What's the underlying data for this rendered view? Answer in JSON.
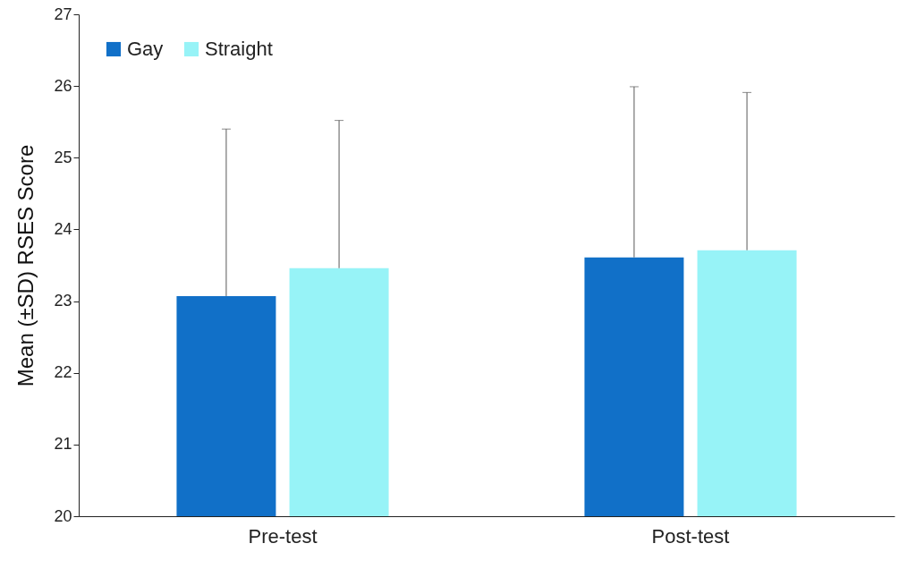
{
  "chart_data": {
    "type": "bar",
    "ylabel": "Mean (±SD) RSES Score",
    "categories": [
      "Pre-test",
      "Post-test"
    ],
    "series": [
      {
        "name": "Gay",
        "color": "#1170c8",
        "values": [
          23.07,
          23.61
        ],
        "errors": [
          [
            23.07,
            25.4
          ],
          [
            23.61,
            25.99
          ]
        ]
      },
      {
        "name": "Straight",
        "color": "#97f3f7",
        "values": [
          23.46,
          23.71
        ],
        "errors": [
          [
            23.46,
            25.52
          ],
          [
            23.71,
            25.91
          ]
        ]
      }
    ],
    "ylim": [
      20,
      27
    ],
    "yticks": [
      20,
      21,
      22,
      23,
      24,
      25,
      26,
      27
    ],
    "grid": false,
    "legend": "top left"
  }
}
